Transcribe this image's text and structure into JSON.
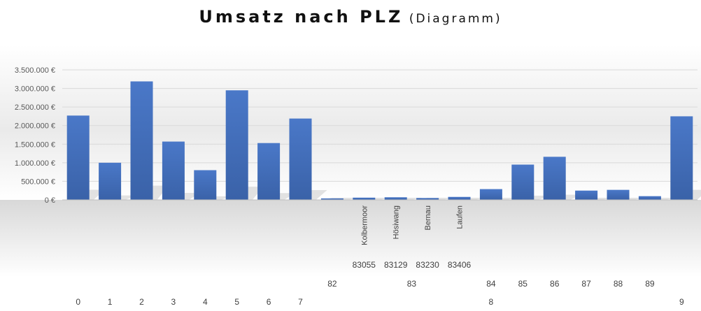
{
  "chart_data": {
    "type": "bar",
    "title": "Umsatz nach PLZ",
    "subtitle": "(Diagramm)",
    "y_ticks": [
      "0 €",
      "500.000 €",
      "1.000.000 €",
      "1.500.000 €",
      "2.000.000 €",
      "2.500.000 €",
      "3.000.000 €",
      "3.500.000 €"
    ],
    "ylim": [
      0,
      3500000
    ],
    "grid": true,
    "bar_color": "#4472C4",
    "category_levels": {
      "level1": [
        "",
        "",
        "",
        "",
        "",
        "",
        "",
        "",
        "",
        "Kolbermoor",
        "Hösiwang",
        "Bernau",
        "Laufen",
        "",
        "",
        "",
        "",
        "",
        "",
        ""
      ],
      "level2": [
        "",
        "",
        "",
        "",
        "",
        "",
        "",
        "",
        "",
        "83055",
        "83129",
        "83230",
        "83406",
        "",
        "",
        "",
        "",
        "",
        "",
        ""
      ],
      "level3_groups": [
        {
          "label": "82",
          "start": 8,
          "end": 8
        },
        {
          "label": "83",
          "start": 9,
          "end": 12
        },
        {
          "label": "84",
          "start": 13,
          "end": 13
        },
        {
          "label": "85",
          "start": 14,
          "end": 14
        },
        {
          "label": "86",
          "start": 15,
          "end": 15
        },
        {
          "label": "87",
          "start": 16,
          "end": 16
        },
        {
          "label": "88",
          "start": 17,
          "end": 17
        },
        {
          "label": "89",
          "start": 18,
          "end": 18
        }
      ],
      "level4_groups": [
        {
          "label": "0",
          "start": 0,
          "end": 0
        },
        {
          "label": "1",
          "start": 1,
          "end": 1
        },
        {
          "label": "2",
          "start": 2,
          "end": 2
        },
        {
          "label": "3",
          "start": 3,
          "end": 3
        },
        {
          "label": "4",
          "start": 4,
          "end": 4
        },
        {
          "label": "5",
          "start": 5,
          "end": 5
        },
        {
          "label": "6",
          "start": 6,
          "end": 6
        },
        {
          "label": "7",
          "start": 7,
          "end": 7
        },
        {
          "label": "8",
          "start": 8,
          "end": 18
        },
        {
          "label": "9",
          "start": 19,
          "end": 19
        }
      ]
    },
    "values": [
      2270000,
      1000000,
      3190000,
      1570000,
      800000,
      2950000,
      1530000,
      2190000,
      40000,
      60000,
      70000,
      50000,
      80000,
      290000,
      950000,
      1160000,
      250000,
      270000,
      100000,
      2250000
    ]
  }
}
